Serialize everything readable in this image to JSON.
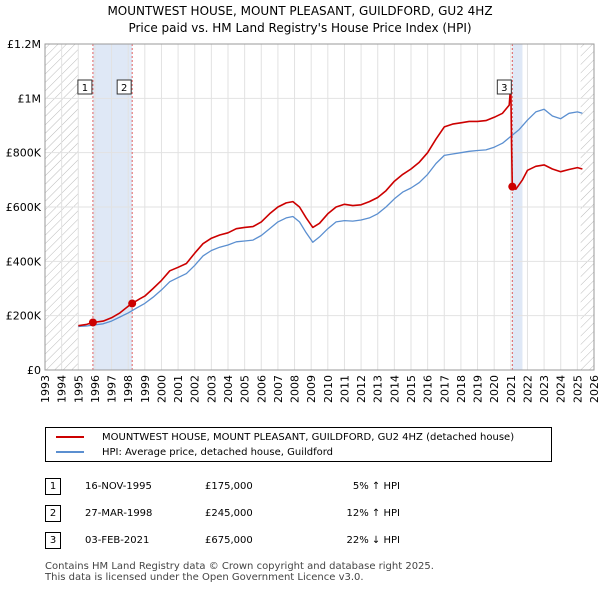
{
  "chart_data": {
    "type": "line",
    "title": "MOUNTWEST HOUSE, MOUNT PLEASANT, GUILDFORD, GU2 4HZ",
    "subtitle": "Price paid vs. HM Land Registry's House Price Index (HPI)",
    "xlim": [
      1993,
      2026
    ],
    "ylim": [
      0,
      1200000
    ],
    "x_ticks": [
      "1993",
      "1994",
      "1995",
      "1996",
      "1997",
      "1998",
      "1999",
      "2000",
      "2001",
      "2002",
      "2003",
      "2004",
      "2005",
      "2006",
      "2007",
      "2008",
      "2009",
      "2010",
      "2011",
      "2012",
      "2013",
      "2014",
      "2015",
      "2016",
      "2017",
      "2018",
      "2019",
      "2020",
      "2021",
      "2022",
      "2023",
      "2024",
      "2025",
      "2026"
    ],
    "y_ticks": [
      {
        "value": 0,
        "label": "£0"
      },
      {
        "value": 200000,
        "label": "£200K"
      },
      {
        "value": 400000,
        "label": "£400K"
      },
      {
        "value": 600000,
        "label": "£600K"
      },
      {
        "value": 800000,
        "label": "£800K"
      },
      {
        "value": 1000000,
        "label": "£1M"
      },
      {
        "value": 1200000,
        "label": "£1.2M"
      }
    ],
    "hatch_ranges": [
      [
        1993,
        1995.0
      ],
      [
        2025.2,
        2026
      ]
    ],
    "sale_shades": [
      [
        1995.88,
        1998.24
      ],
      [
        2021.09,
        2021.7
      ]
    ],
    "series": [
      {
        "name": "MOUNTWEST HOUSE, MOUNT PLEASANT, GUILDFORD, GU2 4HZ (detached house)",
        "color": "#cc0000",
        "points": [
          [
            1995.0,
            163000
          ],
          [
            1995.5,
            168000
          ],
          [
            1995.88,
            175000
          ],
          [
            1996.5,
            180000
          ],
          [
            1997.0,
            192000
          ],
          [
            1997.5,
            210000
          ],
          [
            1998.0,
            235000
          ],
          [
            1998.24,
            245000
          ],
          [
            1998.7,
            262000
          ],
          [
            1999.0,
            272000
          ],
          [
            1999.5,
            300000
          ],
          [
            2000.0,
            330000
          ],
          [
            2000.5,
            365000
          ],
          [
            2001.0,
            378000
          ],
          [
            2001.5,
            392000
          ],
          [
            2002.0,
            430000
          ],
          [
            2002.5,
            465000
          ],
          [
            2003.0,
            485000
          ],
          [
            2003.5,
            497000
          ],
          [
            2004.0,
            505000
          ],
          [
            2004.5,
            520000
          ],
          [
            2005.0,
            525000
          ],
          [
            2005.5,
            528000
          ],
          [
            2006.0,
            545000
          ],
          [
            2006.5,
            575000
          ],
          [
            2007.0,
            600000
          ],
          [
            2007.5,
            615000
          ],
          [
            2007.9,
            620000
          ],
          [
            2008.3,
            600000
          ],
          [
            2008.7,
            560000
          ],
          [
            2009.1,
            525000
          ],
          [
            2009.5,
            540000
          ],
          [
            2010.0,
            575000
          ],
          [
            2010.5,
            600000
          ],
          [
            2011.0,
            610000
          ],
          [
            2011.5,
            605000
          ],
          [
            2012.0,
            608000
          ],
          [
            2012.5,
            620000
          ],
          [
            2013.0,
            635000
          ],
          [
            2013.5,
            660000
          ],
          [
            2014.0,
            695000
          ],
          [
            2014.5,
            720000
          ],
          [
            2015.0,
            740000
          ],
          [
            2015.5,
            765000
          ],
          [
            2016.0,
            800000
          ],
          [
            2016.5,
            850000
          ],
          [
            2017.0,
            895000
          ],
          [
            2017.5,
            905000
          ],
          [
            2018.0,
            910000
          ],
          [
            2018.5,
            915000
          ],
          [
            2019.0,
            915000
          ],
          [
            2019.5,
            918000
          ],
          [
            2020.0,
            930000
          ],
          [
            2020.5,
            945000
          ],
          [
            2020.9,
            975000
          ],
          [
            2021.0,
            1050000
          ],
          [
            2021.05,
            825000
          ],
          [
            2021.09,
            675000
          ],
          [
            2021.3,
            665000
          ],
          [
            2021.7,
            700000
          ],
          [
            2022.0,
            735000
          ],
          [
            2022.5,
            750000
          ],
          [
            2023.0,
            755000
          ],
          [
            2023.5,
            740000
          ],
          [
            2024.0,
            730000
          ],
          [
            2024.5,
            738000
          ],
          [
            2025.0,
            745000
          ],
          [
            2025.3,
            740000
          ]
        ]
      },
      {
        "name": "HPI: Average price, detached house, Guildford",
        "color": "#5b8fd0",
        "points": [
          [
            1995.0,
            160000
          ],
          [
            1995.5,
            162000
          ],
          [
            1996.0,
            166000
          ],
          [
            1996.5,
            170000
          ],
          [
            1997.0,
            180000
          ],
          [
            1997.5,
            195000
          ],
          [
            1998.0,
            210000
          ],
          [
            1998.5,
            228000
          ],
          [
            1999.0,
            245000
          ],
          [
            1999.5,
            268000
          ],
          [
            2000.0,
            295000
          ],
          [
            2000.5,
            325000
          ],
          [
            2001.0,
            340000
          ],
          [
            2001.5,
            355000
          ],
          [
            2002.0,
            385000
          ],
          [
            2002.5,
            420000
          ],
          [
            2003.0,
            440000
          ],
          [
            2003.5,
            452000
          ],
          [
            2004.0,
            460000
          ],
          [
            2004.5,
            472000
          ],
          [
            2005.0,
            475000
          ],
          [
            2005.5,
            478000
          ],
          [
            2006.0,
            495000
          ],
          [
            2006.5,
            520000
          ],
          [
            2007.0,
            545000
          ],
          [
            2007.5,
            560000
          ],
          [
            2007.9,
            565000
          ],
          [
            2008.3,
            545000
          ],
          [
            2008.7,
            505000
          ],
          [
            2009.1,
            470000
          ],
          [
            2009.5,
            490000
          ],
          [
            2010.0,
            520000
          ],
          [
            2010.5,
            545000
          ],
          [
            2011.0,
            550000
          ],
          [
            2011.5,
            548000
          ],
          [
            2012.0,
            552000
          ],
          [
            2012.5,
            560000
          ],
          [
            2013.0,
            575000
          ],
          [
            2013.5,
            600000
          ],
          [
            2014.0,
            630000
          ],
          [
            2014.5,
            655000
          ],
          [
            2015.0,
            670000
          ],
          [
            2015.5,
            690000
          ],
          [
            2016.0,
            720000
          ],
          [
            2016.5,
            760000
          ],
          [
            2017.0,
            790000
          ],
          [
            2017.5,
            795000
          ],
          [
            2018.0,
            800000
          ],
          [
            2018.5,
            805000
          ],
          [
            2019.0,
            808000
          ],
          [
            2019.5,
            810000
          ],
          [
            2020.0,
            820000
          ],
          [
            2020.5,
            835000
          ],
          [
            2021.0,
            860000
          ],
          [
            2021.5,
            885000
          ],
          [
            2022.0,
            920000
          ],
          [
            2022.5,
            950000
          ],
          [
            2023.0,
            960000
          ],
          [
            2023.5,
            935000
          ],
          [
            2024.0,
            925000
          ],
          [
            2024.5,
            945000
          ],
          [
            2025.0,
            950000
          ],
          [
            2025.3,
            945000
          ]
        ]
      }
    ],
    "markers": [
      {
        "label": "1",
        "x": 1995.88,
        "y": 175000
      },
      {
        "label": "2",
        "x": 1998.24,
        "y": 245000
      },
      {
        "label": "3",
        "x": 2021.09,
        "y": 675000
      }
    ]
  },
  "legend": {
    "property": "MOUNTWEST HOUSE, MOUNT PLEASANT, GUILDFORD, GU2 4HZ (detached house)",
    "hpi": "HPI: Average price, detached house, Guildford",
    "property_color": "#cc0000",
    "hpi_color": "#5b8fd0"
  },
  "sales": [
    {
      "num": "1",
      "date": "16-NOV-1995",
      "price": "£175,000",
      "hpi": "5% ↑ HPI"
    },
    {
      "num": "2",
      "date": "27-MAR-1998",
      "price": "£245,000",
      "hpi": "12% ↑ HPI"
    },
    {
      "num": "3",
      "date": "03-FEB-2021",
      "price": "£675,000",
      "hpi": "22% ↓ HPI"
    }
  ],
  "footer": {
    "line1": "Contains HM Land Registry data © Crown copyright and database right 2025.",
    "line2": "This data is licensed under the Open Government Licence v3.0."
  }
}
